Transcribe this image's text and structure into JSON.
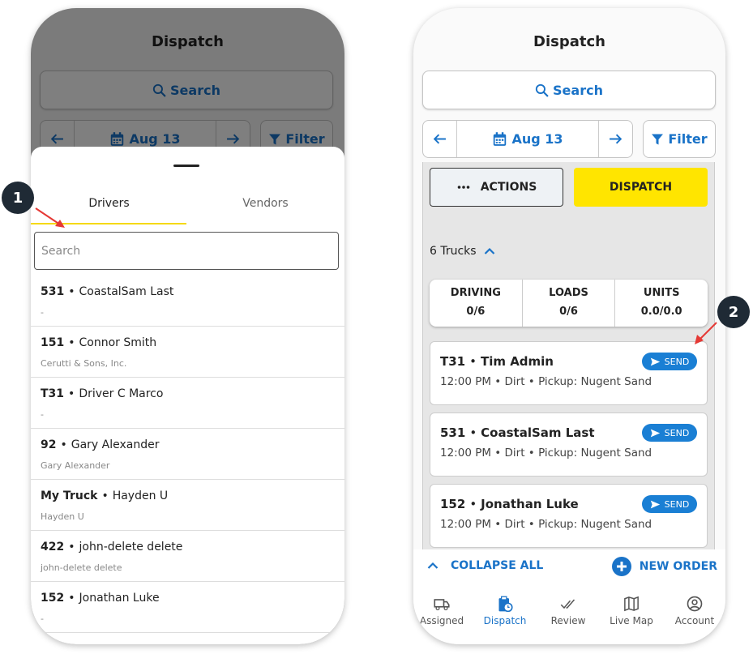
{
  "left": {
    "header": {
      "title": "Dispatch",
      "search": "Search",
      "date": "Aug 13",
      "filter": "Filter"
    },
    "sheet": {
      "tabs": [
        "Drivers",
        "Vendors"
      ],
      "search_placeholder": "Search",
      "separator": "•",
      "items": [
        {
          "unit": "531",
          "name": "CoastalSam Last",
          "subtitle": "-"
        },
        {
          "unit": "151",
          "name": "Connor Smith",
          "subtitle": "Cerutti & Sons, Inc."
        },
        {
          "unit": "T31",
          "name": "Driver C Marco",
          "subtitle": "-"
        },
        {
          "unit": "92",
          "name": "Gary Alexander",
          "subtitle": "Gary Alexander"
        },
        {
          "unit": "My Truck",
          "name": "Hayden U",
          "subtitle": "Hayden U"
        },
        {
          "unit": "422",
          "name": "john-delete delete",
          "subtitle": "john-delete delete"
        },
        {
          "unit": "152",
          "name": "Jonathan Luke",
          "subtitle": "-"
        }
      ]
    },
    "callout": "1"
  },
  "right": {
    "header": {
      "title": "Dispatch",
      "search": "Search",
      "date": "Aug 13",
      "filter": "Filter"
    },
    "actions": "ACTIONS",
    "dispatch": "DISPATCH",
    "trucks": "6 Trucks",
    "stats": [
      {
        "label": "DRIVING",
        "value": "0/6"
      },
      {
        "label": "LOADS",
        "value": "0/6"
      },
      {
        "label": "UNITS",
        "value": "0.0/0.0"
      }
    ],
    "separator": "•",
    "cards": [
      {
        "unit": "T31",
        "name": "Tim Admin",
        "send": "SEND",
        "details": "12:00 PM • Dirt • Pickup: Nugent Sand"
      },
      {
        "unit": "531",
        "name": "CoastalSam Last",
        "send": "SEND",
        "details": "12:00 PM • Dirt • Pickup: Nugent Sand"
      },
      {
        "unit": "152",
        "name": "Jonathan Luke",
        "send": "SEND",
        "details": "12:00 PM • Dirt • Pickup: Nugent Sand"
      }
    ],
    "collapse_all": "COLLAPSE ALL",
    "new_order": "NEW ORDER",
    "nav": [
      "Assigned",
      "Dispatch",
      "Review",
      "Live Map",
      "Account"
    ],
    "callout": "2"
  }
}
